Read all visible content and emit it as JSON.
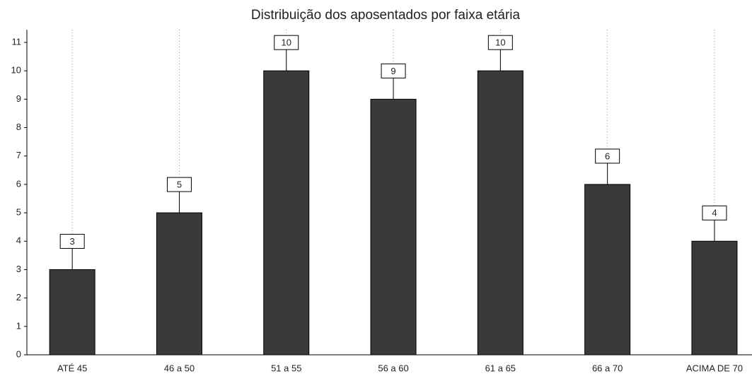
{
  "chart_data": {
    "type": "bar",
    "title": "Distribuição dos aposentados por faixa etária",
    "categories": [
      "ATÉ 45",
      "46 a 50",
      "51 a 55",
      "56 a 60",
      "61 a 65",
      "66 a 70",
      "ACIMA DE 70"
    ],
    "values": [
      3,
      5,
      10,
      9,
      10,
      6,
      4
    ],
    "color": "#3a3a3a",
    "ylim": [
      0,
      11
    ],
    "yticks": [
      0,
      1,
      2,
      3,
      4,
      5,
      6,
      7,
      8,
      9,
      10,
      11
    ],
    "grid": true
  }
}
